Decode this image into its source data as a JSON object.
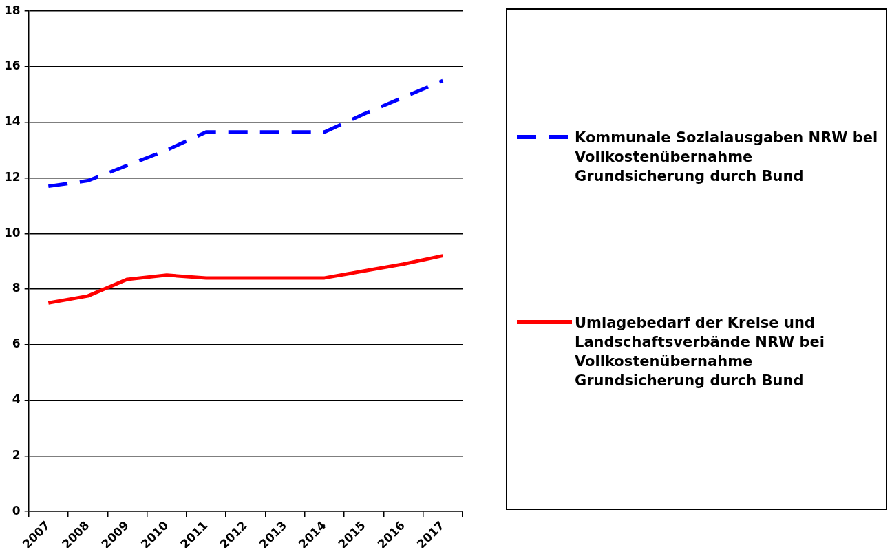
{
  "chart_data": {
    "type": "line",
    "categories": [
      "2007",
      "2008",
      "2009",
      "2010",
      "2011",
      "2012",
      "2013",
      "2014",
      "2015",
      "2016",
      "2017"
    ],
    "series": [
      {
        "name": "Kommunale Sozialausgaben NRW bei Vollkostenübernahme Grundsicherung durch Bund",
        "color": "#0000ff",
        "line_style": "dashed",
        "values": [
          11.7,
          11.9,
          12.45,
          13.0,
          13.65,
          13.65,
          13.65,
          13.65,
          14.3,
          14.9,
          15.5
        ]
      },
      {
        "name": "Umlagebedarf der Kreise und Landschaftsverbände NRW bei Vollkostenübernahme Grundsicherung durch Bund",
        "color": "#ff0000",
        "line_style": "solid",
        "values": [
          7.5,
          7.75,
          8.35,
          8.5,
          8.4,
          8.4,
          8.4,
          8.4,
          8.65,
          8.9,
          9.2
        ]
      }
    ],
    "ylim": [
      0,
      18
    ],
    "yticks": [
      0,
      2,
      4,
      6,
      8,
      10,
      12,
      14,
      16,
      18
    ],
    "grid": "y",
    "legend": "right",
    "marker": "none"
  }
}
